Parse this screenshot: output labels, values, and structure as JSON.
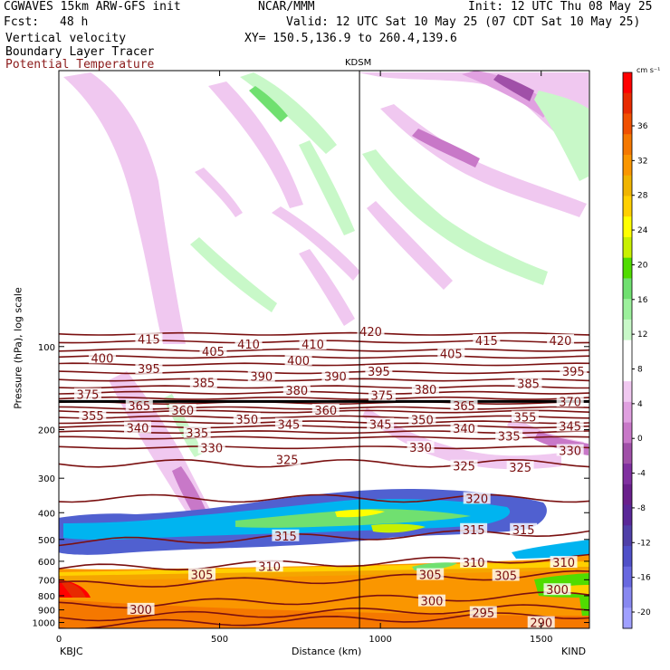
{
  "header": {
    "model": "CGWAVES 15km ARW-GFS init",
    "org": "NCAR/MMM",
    "init": "Init: 12 UTC Thu 08 May 25",
    "fcst_label": "Fcst:",
    "fcst_value": "48 h",
    "valid": "Valid: 12 UTC Sat 10 May 25 (07 CDT Sat 10 May 25)",
    "line3": "Vertical velocity",
    "xy": "XY= 150.5,136.9 to 260.4,139.6",
    "line4": "Boundary Layer Tracer",
    "line5": "Potential Temperature"
  },
  "colors": {
    "theta_contour": "#7a1010",
    "theta_label": "#7a1010"
  },
  "chart_data": {
    "type": "heatmap",
    "title": "",
    "xlabel": "Distance (km)",
    "ylabel": "Pressure (hPa), log scale",
    "x_ticks": [
      0,
      500,
      1000,
      1500
    ],
    "xlim": [
      0,
      1650
    ],
    "y_ticks": [
      100,
      200,
      300,
      400,
      500,
      600,
      700,
      800,
      900,
      1000
    ],
    "ylim": [
      1050,
      10
    ],
    "y_scale": "log",
    "left_station": "KBJC",
    "right_station": "KIND",
    "marker_label": "KDSM",
    "marker_x": 935,
    "colorbar": {
      "unit": "cm s⁻¹",
      "labels": [
        36,
        32,
        28,
        24,
        20,
        16,
        12,
        8,
        4,
        0,
        -4,
        -8,
        -12,
        -16,
        -20
      ],
      "colors": [
        "#ff0000",
        "#e82a00",
        "#f05000",
        "#f57800",
        "#fa9600",
        "#f0b400",
        "#ffd000",
        "#ffff00",
        "#c8f000",
        "#50dc00",
        "#70e070",
        "#9cf09c",
        "#c8f8c8",
        "#ffffff",
        "#ffffff",
        "#f0c8f0",
        "#e0a0e0",
        "#c878c8",
        "#a050a8",
        "#8030a0",
        "#6a208c",
        "#5a2898",
        "#5040a8",
        "#5050c8",
        "#6868e0",
        "#8888f0",
        "#a0a0ff"
      ]
    },
    "theta_contours": [
      {
        "value": 420,
        "p": 90
      },
      {
        "value": 415,
        "p": 96
      },
      {
        "value": 410,
        "p": 103
      },
      {
        "value": 405,
        "p": 109
      },
      {
        "value": 400,
        "p": 116
      },
      {
        "value": 395,
        "p": 124
      },
      {
        "value": 390,
        "p": 132
      },
      {
        "value": 385,
        "p": 140
      },
      {
        "value": 380,
        "p": 147
      },
      {
        "value": 375,
        "p": 154
      },
      {
        "value": 370,
        "p": 160
      },
      {
        "value": 365,
        "p": 167
      },
      {
        "value": 360,
        "p": 172
      },
      {
        "value": 355,
        "p": 180
      },
      {
        "value": 350,
        "p": 188
      },
      {
        "value": 345,
        "p": 195
      },
      {
        "value": 340,
        "p": 204
      },
      {
        "value": 335,
        "p": 214
      },
      {
        "value": 330,
        "p": 232
      },
      {
        "value": 325,
        "p": 265
      },
      {
        "value": 320,
        "p": 355
      },
      {
        "value": 315,
        "p": 490
      },
      {
        "value": 310,
        "p": 610
      },
      {
        "value": 305,
        "p": 700
      },
      {
        "value": 300,
        "p": 830
      },
      {
        "value": 295,
        "p": 920
      },
      {
        "value": 290,
        "p": 980
      }
    ],
    "theta_labels": [
      {
        "t": "415",
        "x": 280,
        "p": 94
      },
      {
        "t": "410",
        "x": 590,
        "p": 98
      },
      {
        "t": "410",
        "x": 790,
        "p": 98
      },
      {
        "t": "420",
        "x": 970,
        "p": 88
      },
      {
        "t": "415",
        "x": 1330,
        "p": 95
      },
      {
        "t": "420",
        "x": 1560,
        "p": 95
      },
      {
        "t": "400",
        "x": 135,
        "p": 110
      },
      {
        "t": "405",
        "x": 480,
        "p": 104
      },
      {
        "t": "400",
        "x": 745,
        "p": 112
      },
      {
        "t": "405",
        "x": 1220,
        "p": 106
      },
      {
        "t": "395",
        "x": 280,
        "p": 120
      },
      {
        "t": "390",
        "x": 630,
        "p": 128
      },
      {
        "t": "390",
        "x": 860,
        "p": 128
      },
      {
        "t": "395",
        "x": 995,
        "p": 123
      },
      {
        "t": "395",
        "x": 1600,
        "p": 123
      },
      {
        "t": "385",
        "x": 450,
        "p": 135
      },
      {
        "t": "380",
        "x": 740,
        "p": 144
      },
      {
        "t": "380",
        "x": 1140,
        "p": 143
      },
      {
        "t": "385",
        "x": 1460,
        "p": 136
      },
      {
        "t": "375",
        "x": 90,
        "p": 149
      },
      {
        "t": "375",
        "x": 1005,
        "p": 150
      },
      {
        "t": "370",
        "x": 1590,
        "p": 158
      },
      {
        "t": "365",
        "x": 250,
        "p": 164
      },
      {
        "t": "360",
        "x": 385,
        "p": 170
      },
      {
        "t": "360",
        "x": 830,
        "p": 170
      },
      {
        "t": "365",
        "x": 1260,
        "p": 164
      },
      {
        "t": "355",
        "x": 105,
        "p": 178
      },
      {
        "t": "350",
        "x": 585,
        "p": 183
      },
      {
        "t": "350",
        "x": 1130,
        "p": 184
      },
      {
        "t": "355",
        "x": 1450,
        "p": 180
      },
      {
        "t": "345",
        "x": 715,
        "p": 191
      },
      {
        "t": "345",
        "x": 1000,
        "p": 191
      },
      {
        "t": "345",
        "x": 1590,
        "p": 194
      },
      {
        "t": "340",
        "x": 245,
        "p": 197
      },
      {
        "t": "340",
        "x": 1260,
        "p": 198
      },
      {
        "t": "335",
        "x": 430,
        "p": 205
      },
      {
        "t": "335",
        "x": 1400,
        "p": 211
      },
      {
        "t": "330",
        "x": 475,
        "p": 233
      },
      {
        "t": "330",
        "x": 1125,
        "p": 232
      },
      {
        "t": "330",
        "x": 1590,
        "p": 238
      },
      {
        "t": "325",
        "x": 710,
        "p": 257
      },
      {
        "t": "325",
        "x": 1260,
        "p": 271
      },
      {
        "t": "325",
        "x": 1435,
        "p": 274
      },
      {
        "t": "320",
        "x": 1300,
        "p": 355
      },
      {
        "t": "315",
        "x": 705,
        "p": 485
      },
      {
        "t": "315",
        "x": 1290,
        "p": 460
      },
      {
        "t": "315",
        "x": 1445,
        "p": 460
      },
      {
        "t": "310",
        "x": 655,
        "p": 625
      },
      {
        "t": "310",
        "x": 1290,
        "p": 605
      },
      {
        "t": "310",
        "x": 1570,
        "p": 605
      },
      {
        "t": "305",
        "x": 445,
        "p": 670
      },
      {
        "t": "305",
        "x": 1155,
        "p": 670
      },
      {
        "t": "305",
        "x": 1390,
        "p": 675
      },
      {
        "t": "300",
        "x": 255,
        "p": 895
      },
      {
        "t": "300",
        "x": 1160,
        "p": 835
      },
      {
        "t": "300",
        "x": 1550,
        "p": 760
      },
      {
        "t": "295",
        "x": 1320,
        "p": 920
      },
      {
        "t": "290",
        "x": 1500,
        "p": 1000
      }
    ],
    "grid": false,
    "legend_position": "right colorbar"
  }
}
